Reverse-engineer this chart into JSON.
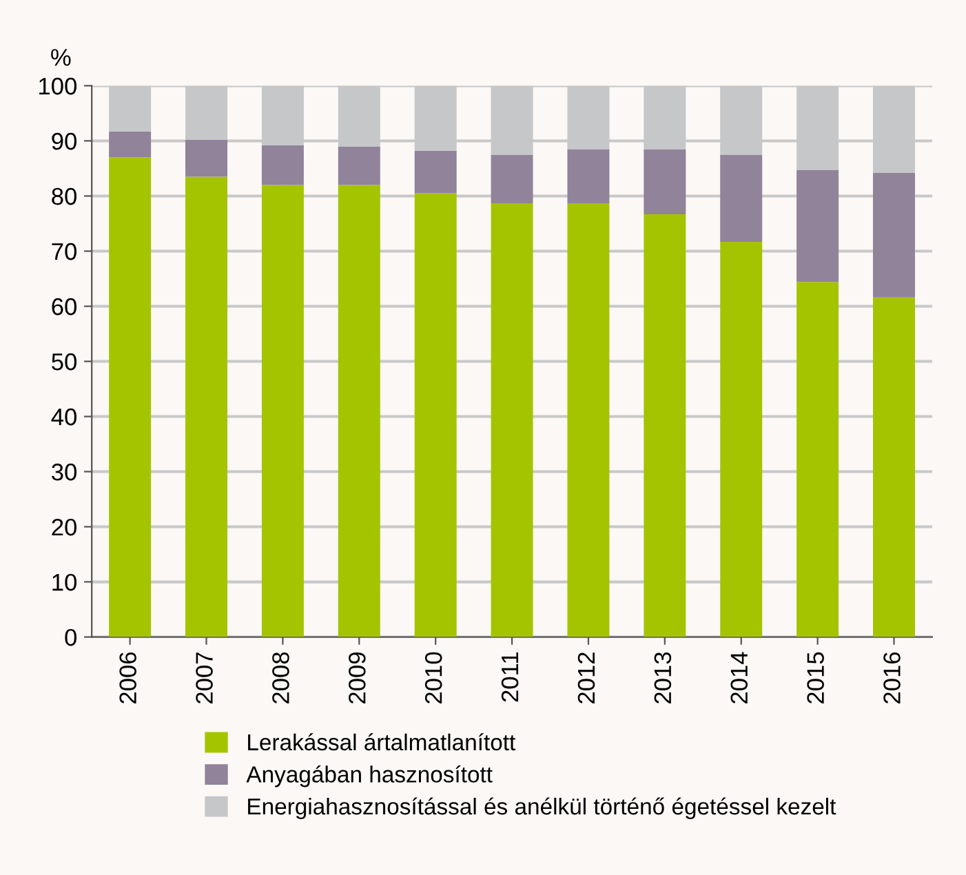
{
  "chart_data": {
    "type": "bar",
    "stacked": true,
    "ylabel": "%",
    "categories": [
      "2006",
      "2007",
      "2008",
      "2009",
      "2010",
      "2011",
      "2012",
      "2013",
      "2014",
      "2015",
      "2016"
    ],
    "series": [
      {
        "name": "Lerakással ártalmatlanított",
        "color": "#a5c400",
        "values": [
          87,
          83.5,
          82,
          82,
          80.5,
          78.7,
          78.7,
          76.7,
          71.7,
          64.4,
          61.6
        ]
      },
      {
        "name": "Anyagában hasznosított",
        "color": "#918399",
        "values": [
          4.7,
          6.7,
          7.2,
          7,
          7.7,
          8.8,
          9.8,
          11.8,
          15.8,
          20.3,
          22.6
        ]
      },
      {
        "name": "Energiahasznosítással és anélkül történő égetéssel kezelt",
        "color": "#c5c7c9",
        "values": [
          8.3,
          9.8,
          10.8,
          11,
          11.8,
          12.5,
          11.5,
          11.5,
          12.5,
          15.3,
          15.8
        ]
      }
    ],
    "ylim": [
      0,
      100
    ],
    "yticks": [
      0,
      10,
      20,
      30,
      40,
      50,
      60,
      70,
      80,
      90,
      100
    ],
    "grid": "y",
    "legend": "bottom"
  }
}
